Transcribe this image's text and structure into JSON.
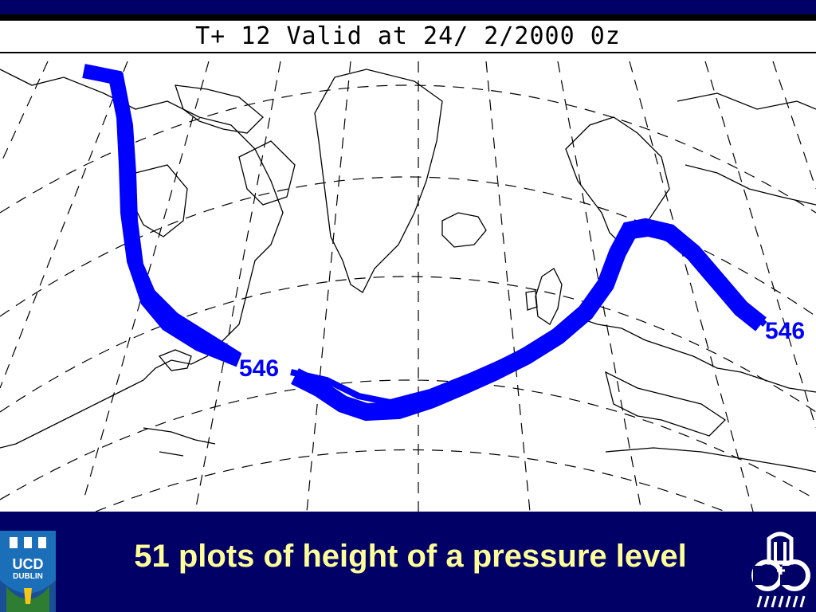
{
  "title": "T+  12 Valid at 24/  2/2000   0z",
  "caption": "51 plots of height of a pressure level",
  "contour_labels": [
    "546",
    "546"
  ],
  "ucd_logo": {
    "line1": "UCD",
    "line2": "DUBLIN",
    "icon": "ucd-crest-icon"
  },
  "right_logo": {
    "icon": "cc-logo-icon"
  },
  "colors": {
    "footer": "#000066",
    "caption": "#ffff99",
    "contour": "#0000ff",
    "map_lines": "#000000"
  }
}
